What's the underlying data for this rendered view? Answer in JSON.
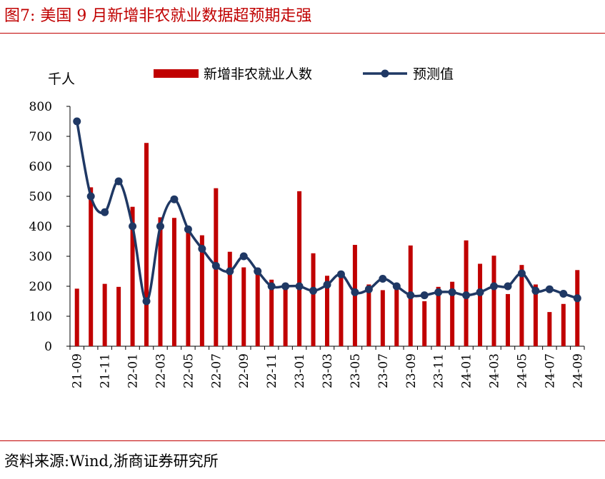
{
  "figure": {
    "title": "图7:  美国 9 月新增非农就业数据超预期走强",
    "source": "资料来源:Wind,浙商证券研究所"
  },
  "colors": {
    "bar": "#c00000",
    "line": "#1f3864",
    "rule": "#c00000"
  },
  "chart_data": {
    "type": "bar+line",
    "unit_label": "千人",
    "ylim": [
      0,
      800
    ],
    "yticks": [
      0,
      100,
      200,
      300,
      400,
      500,
      600,
      700,
      800
    ],
    "x": [
      "21-09",
      "21-10",
      "21-11",
      "21-12",
      "22-01",
      "22-02",
      "22-03",
      "22-04",
      "22-05",
      "22-06",
      "22-07",
      "22-08",
      "22-09",
      "22-10",
      "22-11",
      "22-12",
      "23-01",
      "23-02",
      "23-03",
      "23-04",
      "23-05",
      "23-06",
      "23-07",
      "23-08",
      "23-09",
      "23-10",
      "23-11",
      "23-12",
      "24-01",
      "24-02",
      "24-03",
      "24-04",
      "24-05",
      "24-06",
      "24-07",
      "24-08",
      "24-09"
    ],
    "xtick_labels": [
      "21-09",
      "21-11",
      "22-01",
      "22-03",
      "22-05",
      "22-07",
      "22-09",
      "22-11",
      "23-01",
      "23-03",
      "23-05",
      "23-07",
      "23-09",
      "23-11",
      "24-01",
      "24-03",
      "24-05",
      "24-07",
      "24-09"
    ],
    "legend_position": "top",
    "grid": false,
    "series": [
      {
        "name": "新增非农就业人数",
        "type": "bar",
        "values": [
          192,
          530,
          208,
          198,
          465,
          678,
          430,
          428,
          390,
          370,
          527,
          315,
          263,
          262,
          222,
          200,
          517,
          310,
          235,
          230,
          338,
          206,
          187,
          202,
          336,
          150,
          198,
          215,
          353,
          275,
          302,
          174,
          271,
          206,
          114,
          141,
          254
        ]
      },
      {
        "name": "预测值",
        "type": "line",
        "values": [
          750,
          500,
          447,
          550,
          400,
          150,
          400,
          490,
          390,
          325,
          268,
          250,
          300,
          250,
          200,
          200,
          200,
          185,
          205,
          240,
          180,
          190,
          225,
          200,
          170,
          170,
          180,
          180,
          170,
          180,
          200,
          200,
          243,
          185,
          190,
          175,
          160
        ]
      }
    ]
  }
}
